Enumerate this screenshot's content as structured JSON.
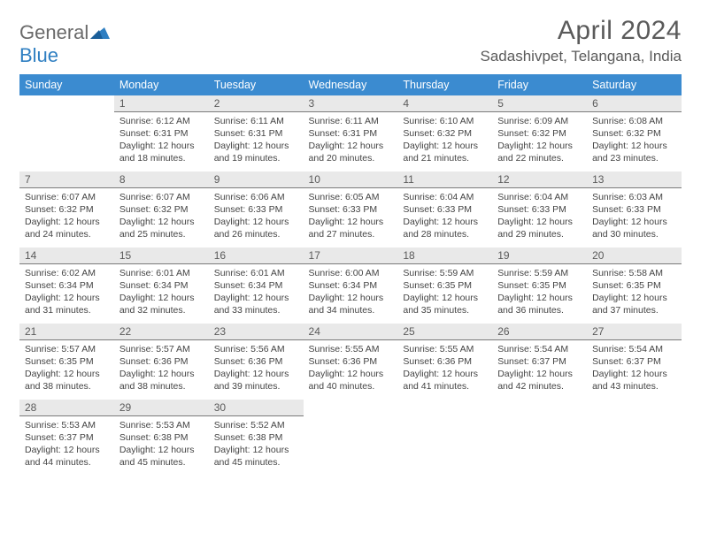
{
  "logo": {
    "word1": "General",
    "word2": "Blue"
  },
  "title": "April 2024",
  "location": "Sadashivpet, Telangana, India",
  "colors": {
    "header_bg": "#3b8bd0",
    "header_text": "#ffffff",
    "daynum_bg": "#e9e9e9",
    "daynum_border": "#7a7a7a",
    "text": "#444444",
    "title_text": "#5a5a5a",
    "logo_gray": "#6a6a6a",
    "logo_blue": "#2f7fc2",
    "page_bg": "#ffffff"
  },
  "typography": {
    "title_fontsize": 30,
    "location_fontsize": 17,
    "dow_fontsize": 12.5,
    "daynum_fontsize": 12,
    "body_fontsize": 10.5,
    "font_family": "Arial"
  },
  "days_of_week": [
    "Sunday",
    "Monday",
    "Tuesday",
    "Wednesday",
    "Thursday",
    "Friday",
    "Saturday"
  ],
  "weeks": [
    [
      null,
      {
        "n": "1",
        "sr": "6:12 AM",
        "ss": "6:31 PM",
        "dl": "12 hours and 18 minutes."
      },
      {
        "n": "2",
        "sr": "6:11 AM",
        "ss": "6:31 PM",
        "dl": "12 hours and 19 minutes."
      },
      {
        "n": "3",
        "sr": "6:11 AM",
        "ss": "6:31 PM",
        "dl": "12 hours and 20 minutes."
      },
      {
        "n": "4",
        "sr": "6:10 AM",
        "ss": "6:32 PM",
        "dl": "12 hours and 21 minutes."
      },
      {
        "n": "5",
        "sr": "6:09 AM",
        "ss": "6:32 PM",
        "dl": "12 hours and 22 minutes."
      },
      {
        "n": "6",
        "sr": "6:08 AM",
        "ss": "6:32 PM",
        "dl": "12 hours and 23 minutes."
      }
    ],
    [
      {
        "n": "7",
        "sr": "6:07 AM",
        "ss": "6:32 PM",
        "dl": "12 hours and 24 minutes."
      },
      {
        "n": "8",
        "sr": "6:07 AM",
        "ss": "6:32 PM",
        "dl": "12 hours and 25 minutes."
      },
      {
        "n": "9",
        "sr": "6:06 AM",
        "ss": "6:33 PM",
        "dl": "12 hours and 26 minutes."
      },
      {
        "n": "10",
        "sr": "6:05 AM",
        "ss": "6:33 PM",
        "dl": "12 hours and 27 minutes."
      },
      {
        "n": "11",
        "sr": "6:04 AM",
        "ss": "6:33 PM",
        "dl": "12 hours and 28 minutes."
      },
      {
        "n": "12",
        "sr": "6:04 AM",
        "ss": "6:33 PM",
        "dl": "12 hours and 29 minutes."
      },
      {
        "n": "13",
        "sr": "6:03 AM",
        "ss": "6:33 PM",
        "dl": "12 hours and 30 minutes."
      }
    ],
    [
      {
        "n": "14",
        "sr": "6:02 AM",
        "ss": "6:34 PM",
        "dl": "12 hours and 31 minutes."
      },
      {
        "n": "15",
        "sr": "6:01 AM",
        "ss": "6:34 PM",
        "dl": "12 hours and 32 minutes."
      },
      {
        "n": "16",
        "sr": "6:01 AM",
        "ss": "6:34 PM",
        "dl": "12 hours and 33 minutes."
      },
      {
        "n": "17",
        "sr": "6:00 AM",
        "ss": "6:34 PM",
        "dl": "12 hours and 34 minutes."
      },
      {
        "n": "18",
        "sr": "5:59 AM",
        "ss": "6:35 PM",
        "dl": "12 hours and 35 minutes."
      },
      {
        "n": "19",
        "sr": "5:59 AM",
        "ss": "6:35 PM",
        "dl": "12 hours and 36 minutes."
      },
      {
        "n": "20",
        "sr": "5:58 AM",
        "ss": "6:35 PM",
        "dl": "12 hours and 37 minutes."
      }
    ],
    [
      {
        "n": "21",
        "sr": "5:57 AM",
        "ss": "6:35 PM",
        "dl": "12 hours and 38 minutes."
      },
      {
        "n": "22",
        "sr": "5:57 AM",
        "ss": "6:36 PM",
        "dl": "12 hours and 38 minutes."
      },
      {
        "n": "23",
        "sr": "5:56 AM",
        "ss": "6:36 PM",
        "dl": "12 hours and 39 minutes."
      },
      {
        "n": "24",
        "sr": "5:55 AM",
        "ss": "6:36 PM",
        "dl": "12 hours and 40 minutes."
      },
      {
        "n": "25",
        "sr": "5:55 AM",
        "ss": "6:36 PM",
        "dl": "12 hours and 41 minutes."
      },
      {
        "n": "26",
        "sr": "5:54 AM",
        "ss": "6:37 PM",
        "dl": "12 hours and 42 minutes."
      },
      {
        "n": "27",
        "sr": "5:54 AM",
        "ss": "6:37 PM",
        "dl": "12 hours and 43 minutes."
      }
    ],
    [
      {
        "n": "28",
        "sr": "5:53 AM",
        "ss": "6:37 PM",
        "dl": "12 hours and 44 minutes."
      },
      {
        "n": "29",
        "sr": "5:53 AM",
        "ss": "6:38 PM",
        "dl": "12 hours and 45 minutes."
      },
      {
        "n": "30",
        "sr": "5:52 AM",
        "ss": "6:38 PM",
        "dl": "12 hours and 45 minutes."
      },
      null,
      null,
      null,
      null
    ]
  ],
  "labels": {
    "sunrise_prefix": "Sunrise: ",
    "sunset_prefix": "Sunset: ",
    "daylight_prefix": "Daylight: "
  }
}
